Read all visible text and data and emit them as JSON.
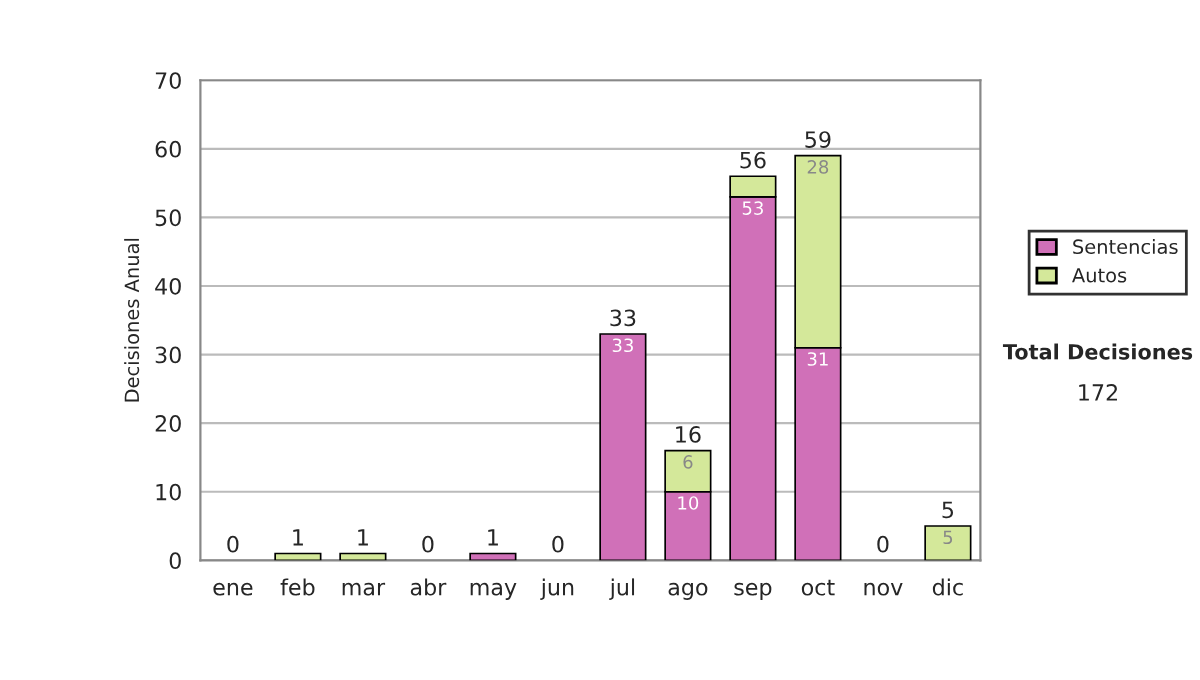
{
  "chart_data": {
    "type": "bar",
    "stacked": true,
    "categories": [
      "ene",
      "feb",
      "mar",
      "abr",
      "may",
      "jun",
      "jul",
      "ago",
      "sep",
      "oct",
      "nov",
      "dic"
    ],
    "ylabel": "Decisiones Anual",
    "series": [
      {
        "name": "Sentencias",
        "color": "#d070b8",
        "values": [
          0,
          0,
          0,
          0,
          1,
          0,
          33,
          10,
          53,
          31,
          0,
          0
        ],
        "value_labels": [
          null,
          null,
          null,
          null,
          null,
          null,
          "33",
          "10",
          "53",
          "31",
          null,
          null
        ]
      },
      {
        "name": "Autos",
        "color": "#d4e89a",
        "values": [
          0,
          1,
          1,
          0,
          0,
          0,
          0,
          6,
          3,
          28,
          0,
          5
        ],
        "value_labels": [
          null,
          null,
          null,
          null,
          null,
          null,
          null,
          "6",
          null,
          "28",
          null,
          "5"
        ]
      }
    ],
    "totals": [
      "0",
      "1",
      "1",
      "0",
      "1",
      "0",
      "33",
      "16",
      "56",
      "59",
      "0",
      "5"
    ],
    "ylim": [
      0,
      70
    ],
    "yticks": [
      0,
      10,
      20,
      30,
      40,
      50,
      60,
      70
    ],
    "grid": "y",
    "legend": "right",
    "annotations": [
      "Total Decisiones",
      "172"
    ]
  }
}
